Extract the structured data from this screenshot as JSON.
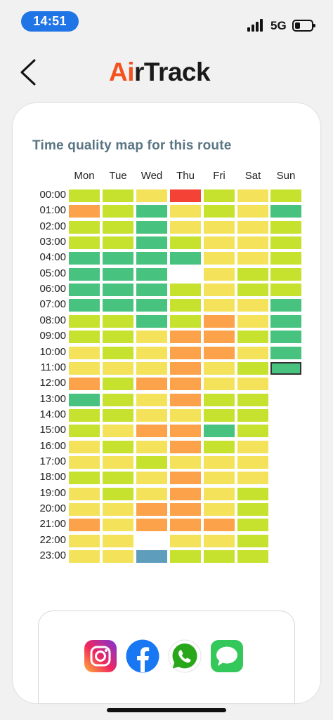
{
  "status_bar": {
    "time": "14:51",
    "network": "5G",
    "battery_level": 0.3
  },
  "app": {
    "logo_prefix": "Ai",
    "logo_suffix": "rTrack"
  },
  "heatmap": {
    "title": "Time quality map for this route",
    "days": [
      "Mon",
      "Tue",
      "Wed",
      "Thu",
      "Fri",
      "Sat",
      "Sun"
    ],
    "hours": [
      "00:00",
      "01:00",
      "02:00",
      "03:00",
      "04:00",
      "05:00",
      "06:00",
      "07:00",
      "08:00",
      "09:00",
      "10:00",
      "11:00",
      "12:00",
      "13:00",
      "14:00",
      "15:00",
      "16:00",
      "17:00",
      "18:00",
      "19:00",
      "20:00",
      "21:00",
      "22:00",
      "23:00"
    ],
    "quality_scale": {
      "G": "#47c27f",
      "L": "#c6e22e",
      "Y": "#f4e35a",
      "O": "#fca24a",
      "R": "#f44336",
      "B": "#5f9dbc",
      "-": "none"
    },
    "grid": [
      [
        "L",
        "L",
        "Y",
        "R",
        "L",
        "Y",
        "L"
      ],
      [
        "O",
        "L",
        "G",
        "Y",
        "L",
        "Y",
        "G"
      ],
      [
        "L",
        "L",
        "G",
        "Y",
        "Y",
        "Y",
        "L"
      ],
      [
        "L",
        "L",
        "G",
        "L",
        "Y",
        "Y",
        "L"
      ],
      [
        "G",
        "G",
        "G",
        "G",
        "Y",
        "Y",
        "L"
      ],
      [
        "G",
        "G",
        "G",
        "-",
        "Y",
        "L",
        "L"
      ],
      [
        "G",
        "G",
        "G",
        "L",
        "Y",
        "L",
        "L"
      ],
      [
        "G",
        "G",
        "G",
        "L",
        "Y",
        "Y",
        "G"
      ],
      [
        "L",
        "L",
        "G",
        "L",
        "O",
        "Y",
        "G"
      ],
      [
        "L",
        "L",
        "Y",
        "O",
        "O",
        "L",
        "G"
      ],
      [
        "Y",
        "L",
        "Y",
        "O",
        "O",
        "Y",
        "G"
      ],
      [
        "Y",
        "Y",
        "Y",
        "O",
        "Y",
        "L",
        "G"
      ],
      [
        "O",
        "L",
        "O",
        "O",
        "Y",
        "Y",
        "-"
      ],
      [
        "G",
        "L",
        "Y",
        "O",
        "L",
        "L",
        "-"
      ],
      [
        "L",
        "L",
        "Y",
        "Y",
        "L",
        "L",
        "-"
      ],
      [
        "L",
        "Y",
        "O",
        "O",
        "G",
        "L",
        "-"
      ],
      [
        "Y",
        "L",
        "Y",
        "O",
        "L",
        "Y",
        "-"
      ],
      [
        "Y",
        "Y",
        "L",
        "Y",
        "Y",
        "Y",
        "-"
      ],
      [
        "L",
        "L",
        "Y",
        "O",
        "Y",
        "Y",
        "-"
      ],
      [
        "Y",
        "L",
        "Y",
        "O",
        "Y",
        "L",
        "-"
      ],
      [
        "Y",
        "Y",
        "O",
        "O",
        "Y",
        "L",
        "-"
      ],
      [
        "O",
        "Y",
        "O",
        "O",
        "O",
        "L",
        "-"
      ],
      [
        "Y",
        "Y",
        "-",
        "Y",
        "Y",
        "L",
        "-"
      ],
      [
        "Y",
        "Y",
        "B",
        "L",
        "L",
        "L",
        "-"
      ]
    ],
    "selected_cell": {
      "day": "Sun",
      "hour": "11:00"
    }
  },
  "share": {
    "items": [
      {
        "name": "instagram",
        "icon": "instagram-icon"
      },
      {
        "name": "facebook",
        "icon": "facebook-icon"
      },
      {
        "name": "whatsapp",
        "icon": "whatsapp-icon"
      },
      {
        "name": "messages",
        "icon": "messages-icon"
      }
    ]
  }
}
